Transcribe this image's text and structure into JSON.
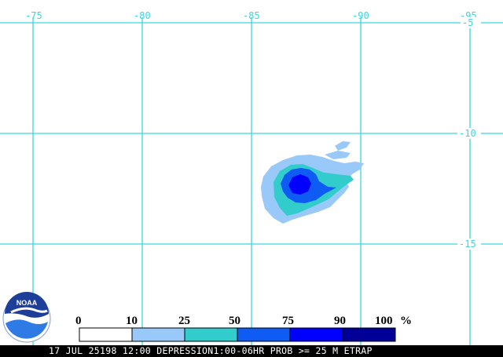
{
  "map": {
    "longitude_labels": [
      "-75",
      "-80",
      "-85",
      "-90",
      "-95"
    ],
    "latitude_labels": [
      "-5",
      "-10",
      "-15"
    ],
    "grid_color": "#39d6e0",
    "label_color": "#39d6e0"
  },
  "logo": {
    "text": "NOAA"
  },
  "legend": {
    "unit": "%",
    "breaks": [
      "0",
      "10",
      "25",
      "50",
      "75",
      "90",
      "100"
    ],
    "bins": [
      {
        "range": "0-10",
        "color": "#ffffff"
      },
      {
        "range": "10-25",
        "color": "#99c9f8"
      },
      {
        "range": "25-50",
        "color": "#33cccc"
      },
      {
        "range": "50-75",
        "color": "#0f5cf5"
      },
      {
        "range": "75-90",
        "color": "#0000ff"
      },
      {
        "range": "90-100",
        "color": "#000099"
      }
    ]
  },
  "caption": {
    "text": "17 JUL 25198 12:00 DEPRESSION1:00-06HR PROB >= 25 M ETRAP"
  },
  "colors": {
    "caption_bar": "#000000",
    "logo_blue": "#1d3f9a"
  }
}
